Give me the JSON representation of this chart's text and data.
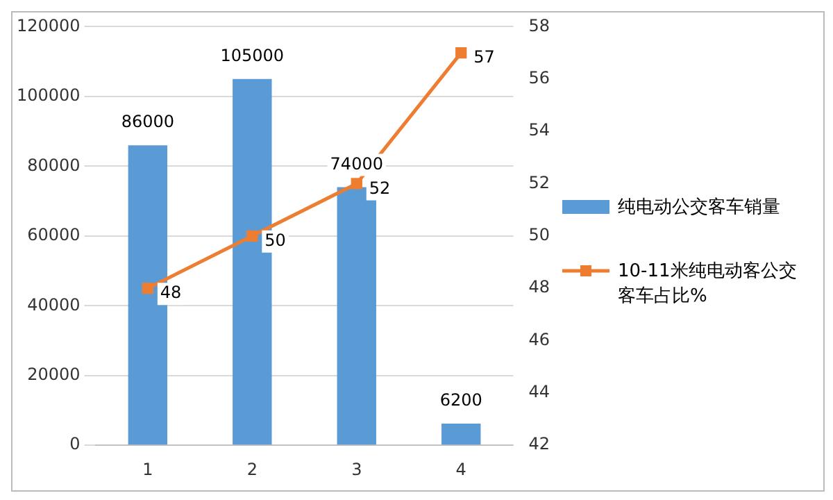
{
  "chart_data": {
    "type": "bar",
    "categories": [
      "1",
      "2",
      "3",
      "4"
    ],
    "series": [
      {
        "name": "纯电动公交客车销量",
        "color": "#5b9bd5",
        "values": [
          86000,
          105000,
          74000,
          6200
        ]
      },
      {
        "name": "10-11米纯电动客公交客车占比%",
        "color": "#ed7d31",
        "type": "line",
        "axis": "y2",
        "values": [
          48,
          50,
          52,
          57
        ]
      }
    ],
    "ylim": [
      0,
      120000
    ],
    "yticks": [
      0,
      20000,
      40000,
      60000,
      80000,
      100000,
      120000
    ],
    "y2lim": [
      42,
      58
    ],
    "y2ticks": [
      42,
      44,
      46,
      48,
      50,
      52,
      54,
      56,
      58
    ],
    "grid": "y",
    "legend": "right",
    "marker": "square",
    "line_style": "solid",
    "data_labels": true
  }
}
